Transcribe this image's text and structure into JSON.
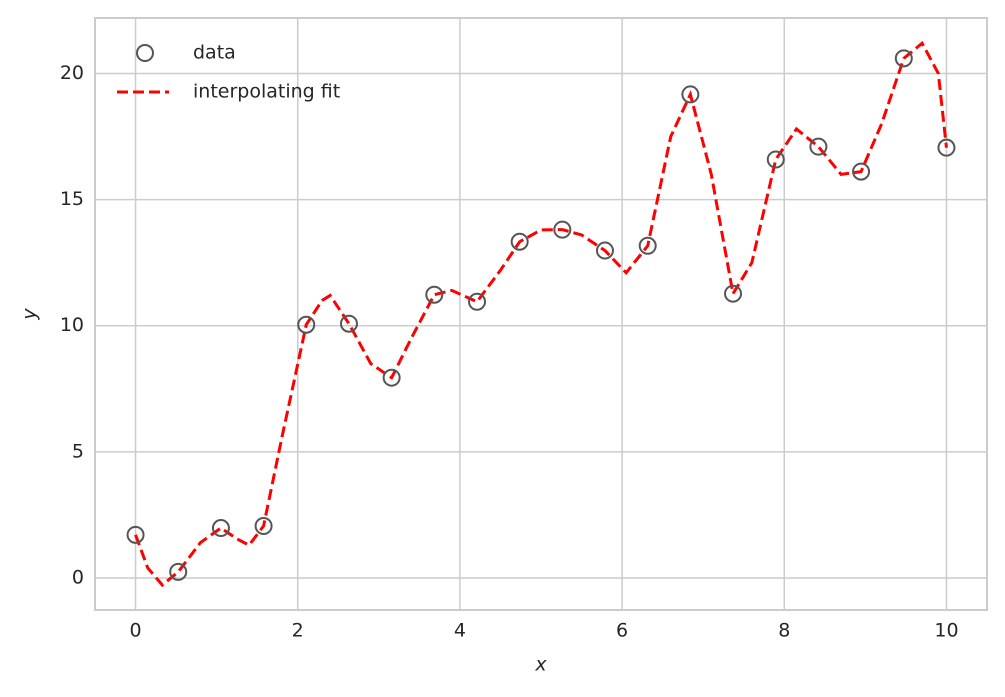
{
  "chart_data": {
    "type": "scatter",
    "xlabel": "x",
    "ylabel": "y",
    "xlim": [
      -0.5,
      10.5
    ],
    "ylim": [
      -1.27,
      22.2
    ],
    "xticks": [
      0,
      2,
      4,
      6,
      8,
      10
    ],
    "yticks": [
      0,
      5,
      10,
      15,
      20
    ],
    "grid": true,
    "legend": "upper left",
    "series": [
      {
        "name": "data",
        "kind": "scatter",
        "marker": "hollow",
        "color": "#555555",
        "x": [
          0,
          0.526,
          1.053,
          1.579,
          2.105,
          2.632,
          3.158,
          3.684,
          4.211,
          4.737,
          5.263,
          5.789,
          6.316,
          6.842,
          7.368,
          7.895,
          8.421,
          8.947,
          9.474,
          10
        ],
        "values": [
          1.71,
          0.24,
          1.98,
          2.06,
          10.04,
          10.08,
          7.94,
          11.23,
          10.95,
          13.33,
          13.81,
          12.98,
          13.17,
          19.17,
          11.27,
          16.59,
          17.1,
          16.11,
          20.6,
          17.06
        ]
      },
      {
        "name": "interpolating fit",
        "kind": "line",
        "dashed": true,
        "color": "#ff0000",
        "x": [
          0,
          0.15,
          0.33,
          0.526,
          0.8,
          1.053,
          1.25,
          1.4,
          1.579,
          1.8,
          2.105,
          2.3,
          2.4,
          2.632,
          2.9,
          3.158,
          3.4,
          3.684,
          3.9,
          4.211,
          4.5,
          4.737,
          5.0,
          5.263,
          5.5,
          5.789,
          6.05,
          6.316,
          6.6,
          6.842,
          7.1,
          7.368,
          7.6,
          7.895,
          8.15,
          8.421,
          8.7,
          8.947,
          9.2,
          9.474,
          9.7,
          9.9,
          10
        ],
        "values": [
          1.71,
          0.4,
          -0.28,
          0.24,
          1.4,
          1.98,
          1.55,
          1.3,
          2.06,
          5.5,
          10.04,
          11.0,
          11.2,
          10.08,
          8.5,
          7.94,
          9.5,
          11.23,
          11.4,
          10.95,
          12.2,
          13.33,
          13.8,
          13.81,
          13.6,
          12.98,
          12.1,
          13.17,
          17.5,
          19.17,
          16.0,
          11.27,
          12.5,
          16.59,
          17.8,
          17.1,
          16.0,
          16.11,
          18.0,
          20.6,
          21.2,
          20.0,
          17.06
        ]
      }
    ]
  }
}
